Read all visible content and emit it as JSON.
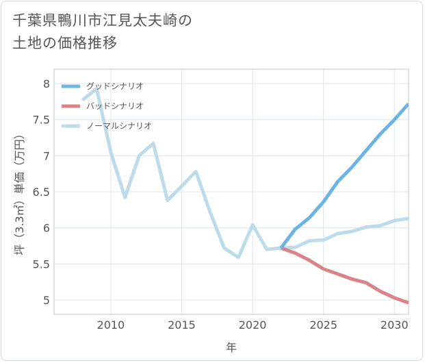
{
  "title_lines": [
    "千葉県鴨川市江見太夫崎の",
    "土地の価格推移"
  ],
  "chart_data": {
    "type": "line",
    "xlabel": "年",
    "ylabel": "坪（3.3㎡）単価（万円）",
    "xlim": [
      2006,
      2031
    ],
    "ylim": [
      4.8,
      8.2
    ],
    "xticks": [
      2010,
      2015,
      2020,
      2025,
      2030
    ],
    "yticks": [
      5,
      5.5,
      6,
      6.5,
      7,
      7.5,
      8
    ],
    "ytick_labels": [
      "5",
      "5.5",
      "6",
      "6.5",
      "7",
      "7.5",
      "8"
    ],
    "grid": true,
    "legend_position": "top-left",
    "series": [
      {
        "name": "グッドシナリオ",
        "color": "#6cb4e4",
        "x": [
          2022,
          2023,
          2024,
          2025,
          2026,
          2027,
          2028,
          2029,
          2030,
          2031
        ],
        "values": [
          5.72,
          5.98,
          6.14,
          6.36,
          6.64,
          6.84,
          7.07,
          7.3,
          7.5,
          7.72
        ]
      },
      {
        "name": "バッドシナリオ",
        "color": "#d9848b",
        "x": [
          2022,
          2023,
          2024,
          2025,
          2026,
          2027,
          2028,
          2029,
          2030,
          2031
        ],
        "values": [
          5.72,
          5.65,
          5.55,
          5.43,
          5.36,
          5.29,
          5.24,
          5.12,
          5.03,
          4.96
        ]
      },
      {
        "name": "ノーマルシナリオ",
        "color": "#bcdbeb",
        "x": [
          2008,
          2009,
          2010,
          2011,
          2012,
          2013,
          2014,
          2015,
          2016,
          2017,
          2018,
          2019,
          2020,
          2021,
          2022,
          2023,
          2024,
          2025,
          2026,
          2027,
          2028,
          2029,
          2030,
          2031
        ],
        "values": [
          7.77,
          7.93,
          7.05,
          6.42,
          7.0,
          7.17,
          6.38,
          6.58,
          6.78,
          6.22,
          5.72,
          5.59,
          6.04,
          5.7,
          5.72,
          5.73,
          5.82,
          5.83,
          5.92,
          5.95,
          6.01,
          6.03,
          6.1,
          6.13
        ]
      }
    ]
  }
}
